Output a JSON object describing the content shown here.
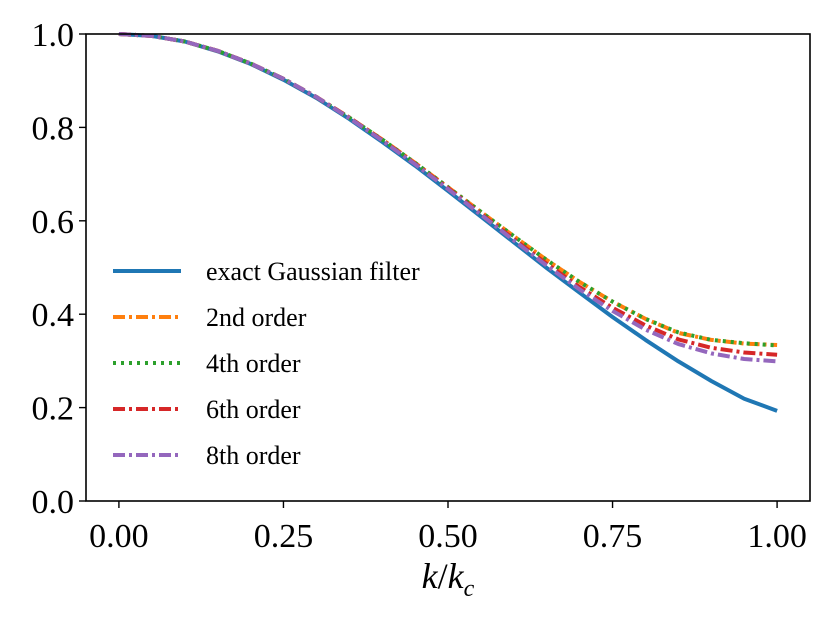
{
  "chart_data": {
    "type": "line",
    "title": "",
    "xlabel": "k/k_c",
    "ylabel": "",
    "xlim": [
      -0.05,
      1.05
    ],
    "ylim": [
      0.0,
      1.0
    ],
    "xticks": [
      0.0,
      0.25,
      0.5,
      0.75,
      1.0
    ],
    "xtick_labels": [
      "0.00",
      "0.25",
      "0.50",
      "0.75",
      "1.00"
    ],
    "yticks": [
      0.0,
      0.2,
      0.4,
      0.6,
      0.8,
      1.0
    ],
    "ytick_labels": [
      "0.0",
      "0.2",
      "0.4",
      "0.6",
      "0.8",
      "1.0"
    ],
    "grid": false,
    "legend_position": "center-left",
    "x": [
      0.0,
      0.05,
      0.1,
      0.15,
      0.2,
      0.25,
      0.3,
      0.35,
      0.4,
      0.45,
      0.5,
      0.55,
      0.6,
      0.65,
      0.7,
      0.75,
      0.8,
      0.85,
      0.9,
      0.95,
      1.0
    ],
    "series": [
      {
        "name": "exact Gaussian filter",
        "color": "#1f77b4",
        "style": "solid",
        "values": [
          1.0,
          0.996,
          0.984,
          0.963,
          0.936,
          0.902,
          0.863,
          0.818,
          0.769,
          0.718,
          0.664,
          0.609,
          0.554,
          0.499,
          0.446,
          0.394,
          0.345,
          0.299,
          0.257,
          0.219,
          0.193
        ]
      },
      {
        "name": "2nd order",
        "color": "#ff7f0e",
        "style": "dashdot",
        "values": [
          1.0,
          0.996,
          0.984,
          0.964,
          0.937,
          0.904,
          0.865,
          0.821,
          0.774,
          0.724,
          0.672,
          0.619,
          0.567,
          0.516,
          0.469,
          0.427,
          0.39,
          0.36,
          0.345,
          0.337,
          0.334
        ]
      },
      {
        "name": "4th order",
        "color": "#2ca02c",
        "style": "dotted",
        "values": [
          1.0,
          0.996,
          0.984,
          0.964,
          0.937,
          0.904,
          0.865,
          0.821,
          0.774,
          0.724,
          0.672,
          0.619,
          0.567,
          0.516,
          0.469,
          0.427,
          0.39,
          0.361,
          0.345,
          0.338,
          0.333
        ]
      },
      {
        "name": "6th order",
        "color": "#d62728",
        "style": "dashdot",
        "values": [
          1.0,
          0.996,
          0.984,
          0.964,
          0.937,
          0.904,
          0.865,
          0.821,
          0.773,
          0.722,
          0.67,
          0.615,
          0.561,
          0.508,
          0.458,
          0.414,
          0.376,
          0.346,
          0.328,
          0.318,
          0.313
        ]
      },
      {
        "name": "8th order",
        "color": "#9467bd",
        "style": "dashdot",
        "values": [
          1.0,
          0.996,
          0.984,
          0.964,
          0.937,
          0.904,
          0.865,
          0.82,
          0.772,
          0.721,
          0.668,
          0.613,
          0.558,
          0.504,
          0.453,
          0.407,
          0.367,
          0.336,
          0.316,
          0.304,
          0.299
        ]
      }
    ]
  }
}
